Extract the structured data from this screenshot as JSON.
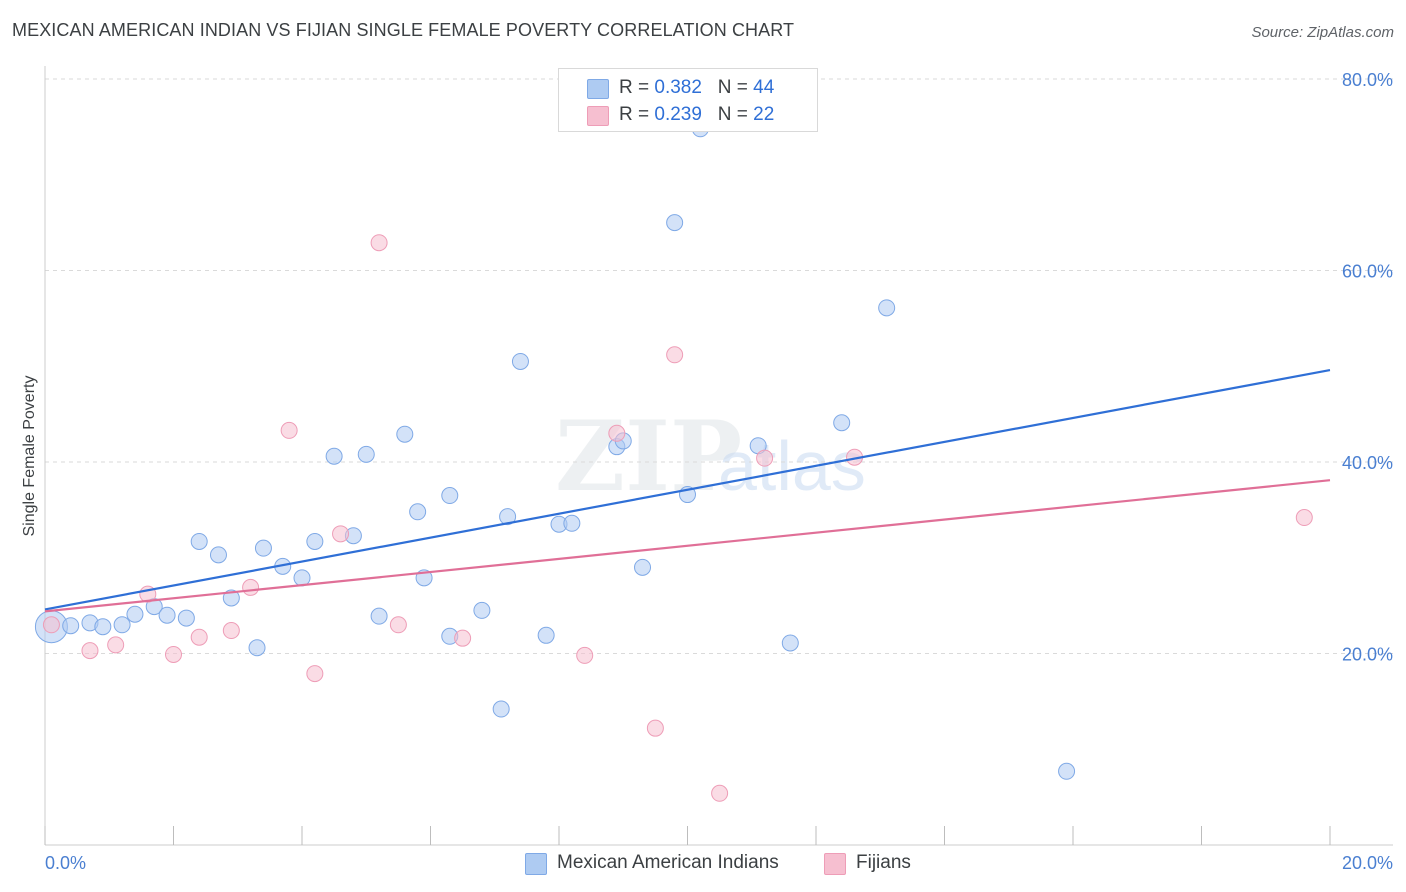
{
  "title": "MEXICAN AMERICAN INDIAN VS FIJIAN SINGLE FEMALE POVERTY CORRELATION CHART",
  "source": "Source: ZipAtlas.com",
  "watermark": {
    "zip": "ZIP",
    "atlas": "atlas"
  },
  "legend": {
    "rows": [
      {
        "r_label": "R = ",
        "r_value": "0.382",
        "n_label": "N = ",
        "n_value": "44",
        "color": "#aecbf2"
      },
      {
        "r_label": "R = ",
        "r_value": "0.239",
        "n_label": "N = ",
        "n_value": "22",
        "color": "#f6bfd0"
      }
    ]
  },
  "chart_data": {
    "type": "scatter",
    "title": "MEXICAN AMERICAN INDIAN VS FIJIAN SINGLE FEMALE POVERTY CORRELATION CHART",
    "xlabel": "",
    "ylabel": "Single Female Poverty",
    "xlim": [
      0,
      20
    ],
    "ylim": [
      0,
      80
    ],
    "x_tick_labels": [
      "0.0%",
      "20.0%"
    ],
    "y_ticks": [
      20,
      40,
      60,
      80
    ],
    "y_tick_labels": [
      "20.0%",
      "40.0%",
      "60.0%",
      "80.0%"
    ],
    "grid": true,
    "legend_position": "top-center",
    "series": [
      {
        "name": "Mexican American Indians",
        "color": "#7fa9e6",
        "fill": "#aecbf2",
        "line_color": "#2f6fd6",
        "trend": {
          "x": [
            0,
            20
          ],
          "y": [
            24.6,
            49.6
          ]
        },
        "points": [
          {
            "x": 0.1,
            "y": 22.8,
            "big": true
          },
          {
            "x": 0.4,
            "y": 22.9
          },
          {
            "x": 0.7,
            "y": 23.2
          },
          {
            "x": 0.9,
            "y": 22.8
          },
          {
            "x": 1.2,
            "y": 23.0
          },
          {
            "x": 1.4,
            "y": 24.1
          },
          {
            "x": 1.7,
            "y": 24.9
          },
          {
            "x": 1.9,
            "y": 24.0
          },
          {
            "x": 2.2,
            "y": 23.7
          },
          {
            "x": 2.4,
            "y": 31.7
          },
          {
            "x": 2.7,
            "y": 30.3
          },
          {
            "x": 2.9,
            "y": 25.8
          },
          {
            "x": 3.3,
            "y": 20.6
          },
          {
            "x": 3.4,
            "y": 31.0
          },
          {
            "x": 3.7,
            "y": 29.1
          },
          {
            "x": 4.0,
            "y": 27.9
          },
          {
            "x": 4.2,
            "y": 31.7
          },
          {
            "x": 4.5,
            "y": 40.6
          },
          {
            "x": 4.8,
            "y": 32.3
          },
          {
            "x": 5.0,
            "y": 40.8
          },
          {
            "x": 5.2,
            "y": 23.9
          },
          {
            "x": 5.6,
            "y": 42.9
          },
          {
            "x": 5.8,
            "y": 34.8
          },
          {
            "x": 5.9,
            "y": 27.9
          },
          {
            "x": 6.3,
            "y": 21.8
          },
          {
            "x": 6.3,
            "y": 36.5
          },
          {
            "x": 6.8,
            "y": 24.5
          },
          {
            "x": 7.1,
            "y": 14.2
          },
          {
            "x": 7.2,
            "y": 34.3
          },
          {
            "x": 7.4,
            "y": 50.5
          },
          {
            "x": 7.8,
            "y": 21.9
          },
          {
            "x": 8.0,
            "y": 33.5
          },
          {
            "x": 8.2,
            "y": 33.6
          },
          {
            "x": 8.9,
            "y": 41.6
          },
          {
            "x": 9.0,
            "y": 42.2
          },
          {
            "x": 9.3,
            "y": 29.0
          },
          {
            "x": 9.8,
            "y": 65.0
          },
          {
            "x": 10.0,
            "y": 36.6
          },
          {
            "x": 10.2,
            "y": 74.8
          },
          {
            "x": 11.1,
            "y": 41.7
          },
          {
            "x": 11.6,
            "y": 21.1
          },
          {
            "x": 12.4,
            "y": 44.1
          },
          {
            "x": 13.1,
            "y": 56.1
          },
          {
            "x": 15.9,
            "y": 7.7
          }
        ]
      },
      {
        "name": "Fijians",
        "color": "#ee9db7",
        "fill": "#f6bfd0",
        "line_color": "#e06f97",
        "trend": {
          "x": [
            0,
            20
          ],
          "y": [
            24.4,
            38.1
          ]
        },
        "points": [
          {
            "x": 0.1,
            "y": 23.0
          },
          {
            "x": 0.7,
            "y": 20.3
          },
          {
            "x": 1.1,
            "y": 20.9
          },
          {
            "x": 1.6,
            "y": 26.2
          },
          {
            "x": 2.0,
            "y": 19.9
          },
          {
            "x": 2.4,
            "y": 21.7
          },
          {
            "x": 2.9,
            "y": 22.4
          },
          {
            "x": 3.2,
            "y": 26.9
          },
          {
            "x": 3.8,
            "y": 43.3
          },
          {
            "x": 4.2,
            "y": 17.9
          },
          {
            "x": 4.6,
            "y": 32.5
          },
          {
            "x": 5.2,
            "y": 62.9
          },
          {
            "x": 5.5,
            "y": 23.0
          },
          {
            "x": 6.5,
            "y": 21.6
          },
          {
            "x": 8.4,
            "y": 19.8
          },
          {
            "x": 8.9,
            "y": 43.0
          },
          {
            "x": 9.5,
            "y": 12.2
          },
          {
            "x": 9.8,
            "y": 51.2
          },
          {
            "x": 10.5,
            "y": 5.4
          },
          {
            "x": 11.2,
            "y": 40.4
          },
          {
            "x": 12.6,
            "y": 40.5
          },
          {
            "x": 19.6,
            "y": 34.2
          }
        ]
      }
    ]
  }
}
